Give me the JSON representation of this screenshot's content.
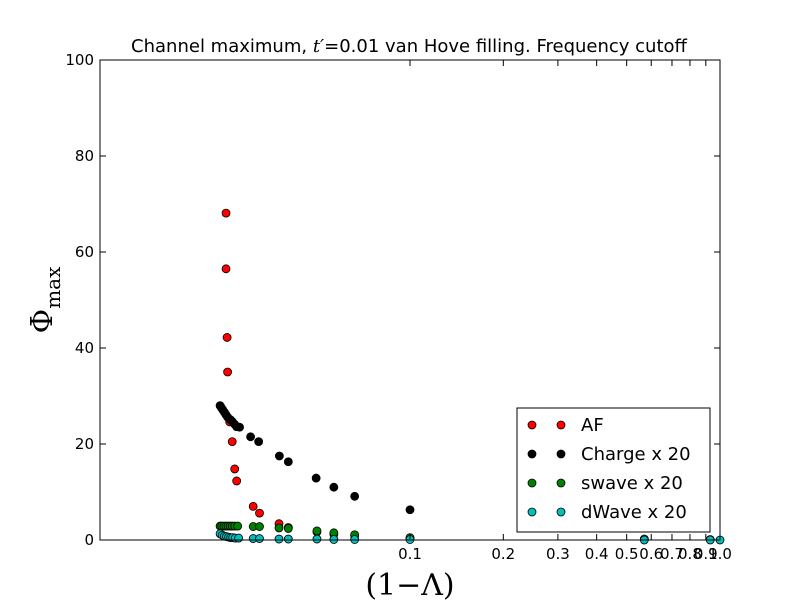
{
  "chart_data": {
    "type": "scatter",
    "title_prefix": "Channel maximum, ",
    "title_math": "t′",
    "title_suffix": "=0.01 van Hove filling. Frequency cutoff",
    "xlabel": "(1−Λ)",
    "ylabel_main": "Φ",
    "ylabel_sub": "max",
    "x_scale": "log",
    "xlim": [
      0.01,
      1.0
    ],
    "ylim": [
      0,
      100
    ],
    "x_ticks": [
      {
        "value": 0.1,
        "label": "0.1"
      },
      {
        "value": 0.2,
        "label": "0.2"
      },
      {
        "value": 0.3,
        "label": "0.3"
      },
      {
        "value": 0.4,
        "label": "0.4"
      },
      {
        "value": 0.5,
        "label": "0.5"
      },
      {
        "value": 0.6,
        "label": "0.6"
      },
      {
        "value": 0.7,
        "label": "0.7"
      },
      {
        "value": 0.8,
        "label": "0.8"
      },
      {
        "value": 0.9,
        "label": "0.9"
      },
      {
        "value": 1.0,
        "label": "1.0"
      }
    ],
    "y_ticks": [
      {
        "value": 0,
        "label": "0"
      },
      {
        "value": 20,
        "label": "20"
      },
      {
        "value": 40,
        "label": "40"
      },
      {
        "value": 60,
        "label": "60"
      },
      {
        "value": 80,
        "label": "80"
      },
      {
        "value": 100,
        "label": "100"
      }
    ],
    "legend_position": "lower-right",
    "grid": false,
    "series": [
      {
        "name": "AF",
        "color": "#ff0000",
        "x": [
          0.0255,
          0.0255,
          0.0257,
          0.0258,
          0.0262,
          0.0267,
          0.0272,
          0.0276,
          0.0312,
          0.0327,
          0.0378,
          0.0405,
          0.0501,
          0.0568,
          0.0663,
          0.1
        ],
        "y": [
          68.1,
          56.5,
          42.2,
          35.0,
          24.6,
          20.5,
          14.8,
          12.3,
          7.0,
          5.6,
          3.4,
          2.6,
          1.7,
          1.2,
          0.9,
          0.3
        ]
      },
      {
        "name": "Charge x 20",
        "color": "#000000",
        "x": [
          0.0244,
          0.0246,
          0.0249,
          0.0252,
          0.0255,
          0.0258,
          0.0263,
          0.0267,
          0.0272,
          0.0276,
          0.0282,
          0.0306,
          0.0325,
          0.0379,
          0.0405,
          0.0498,
          0.0568,
          0.0663,
          0.1
        ],
        "y": [
          28.0,
          27.6,
          27.1,
          26.6,
          26.1,
          25.6,
          25.1,
          24.7,
          24.1,
          23.6,
          23.5,
          21.5,
          20.5,
          17.5,
          16.3,
          12.9,
          11.0,
          9.1,
          6.3
        ]
      },
      {
        "name": "swave x 20",
        "color": "#008000",
        "x": [
          0.0244,
          0.0247,
          0.0251,
          0.0255,
          0.0259,
          0.0263,
          0.0267,
          0.0272,
          0.0278,
          0.0312,
          0.0327,
          0.0378,
          0.0405,
          0.0501,
          0.0568,
          0.0663,
          0.1,
          0.57,
          0.93
        ],
        "y": [
          2.9,
          2.9,
          2.9,
          2.9,
          2.9,
          2.9,
          2.9,
          2.9,
          2.9,
          2.8,
          2.8,
          2.5,
          2.4,
          1.9,
          1.5,
          1.1,
          0.5,
          0.2,
          0.1
        ]
      },
      {
        "name": "dWave x 20",
        "color": "#00bfbf",
        "x": [
          0.0244,
          0.0248,
          0.0252,
          0.0256,
          0.026,
          0.0264,
          0.0268,
          0.0273,
          0.028,
          0.0312,
          0.0327,
          0.0378,
          0.0405,
          0.0501,
          0.0568,
          0.0663,
          0.1,
          0.57,
          0.93,
          1.0
        ],
        "y": [
          1.3,
          1.0,
          0.8,
          0.7,
          0.6,
          0.5,
          0.5,
          0.4,
          0.4,
          0.3,
          0.3,
          0.2,
          0.2,
          0.2,
          0.1,
          0.1,
          0.1,
          0.0,
          0.0,
          0.0
        ]
      }
    ]
  }
}
